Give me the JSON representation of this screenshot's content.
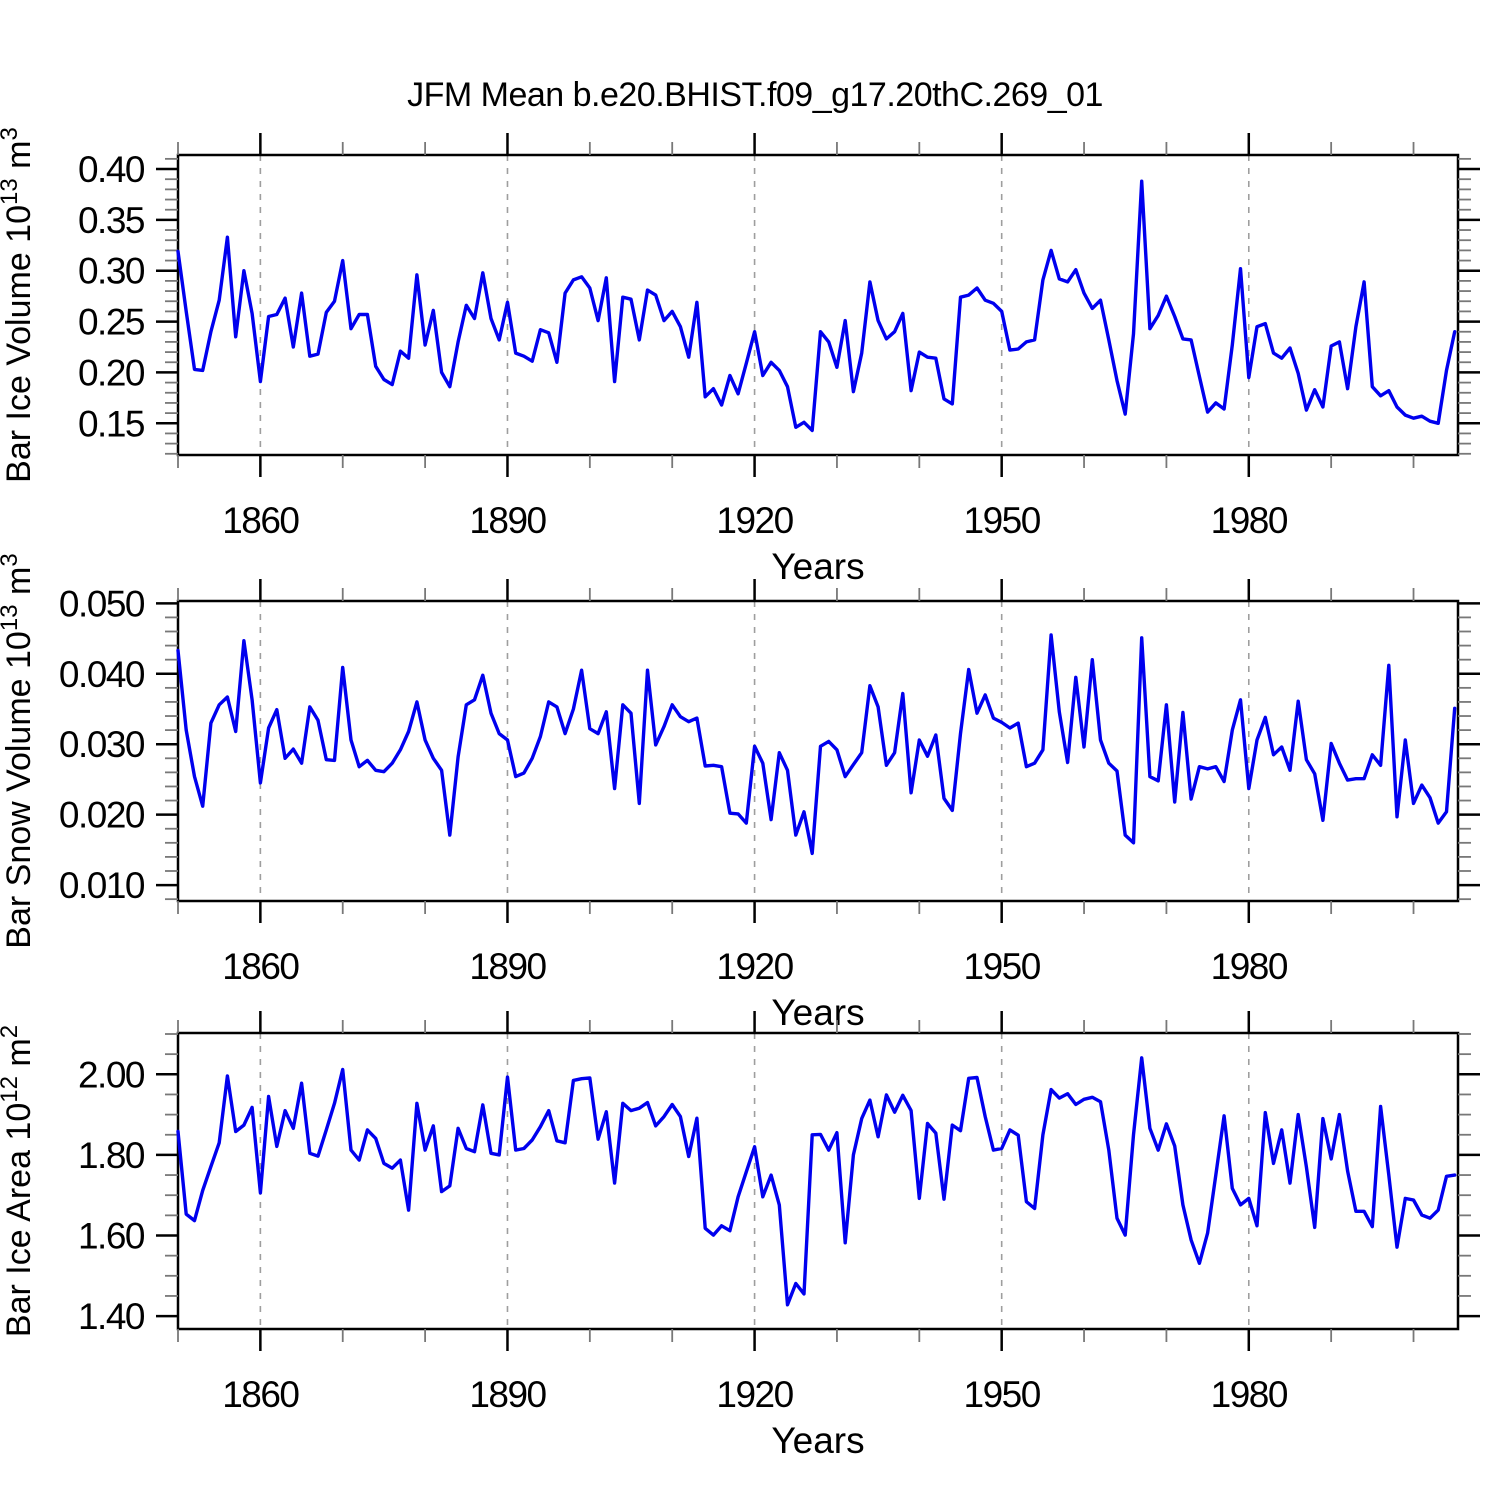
{
  "page": {
    "background": "#ffffff"
  },
  "figure_title": "JFM Mean b.e20.BHIST.f09_g17.20thC.269_01",
  "chart_data": [
    {
      "type": "line",
      "panel": "ice-volume",
      "ylabel_plain": "Bar Ice Volume 10^13 m^3",
      "ylabel_rich": [
        {
          "t": "Bar Ice Volume 10"
        },
        {
          "t": "13",
          "sup": true
        },
        {
          "t": " m"
        },
        {
          "t": "3",
          "sup": true
        }
      ],
      "xlabel": "Years",
      "x_range": [
        1850,
        2005
      ],
      "xlim": [
        1850,
        2005.4
      ],
      "ylim": [
        0.1188,
        0.4138
      ],
      "y_tick_values": [
        0.15,
        0.2,
        0.25,
        0.3,
        0.35,
        0.4
      ],
      "y_tick_labels": [
        "0.15",
        "0.20",
        "0.25",
        "0.30",
        "0.35",
        "0.40"
      ],
      "y_minor_step": 0.01,
      "x_major_ticks": [
        1860,
        1890,
        1920,
        1950,
        1980
      ],
      "x_tick_labels": [
        "1860",
        "1890",
        "1920",
        "1950",
        "1980"
      ],
      "x_minor_ticks": [
        1850,
        1870,
        1880,
        1900,
        1910,
        1930,
        1940,
        1960,
        1970,
        1990,
        2000
      ],
      "grid_years": [
        1860,
        1890,
        1920,
        1950,
        1980
      ],
      "grid_on": true,
      "legend": "none",
      "line_color": "#0000ee",
      "values": [
        0.319,
        0.26,
        0.203,
        0.202,
        0.24,
        0.271,
        0.333,
        0.235,
        0.3,
        0.258,
        0.191,
        0.255,
        0.257,
        0.273,
        0.225,
        0.278,
        0.216,
        0.218,
        0.259,
        0.27,
        0.31,
        0.243,
        0.257,
        0.257,
        0.206,
        0.193,
        0.188,
        0.221,
        0.214,
        0.296,
        0.227,
        0.261,
        0.2,
        0.186,
        0.23,
        0.266,
        0.253,
        0.298,
        0.253,
        0.232,
        0.269,
        0.219,
        0.216,
        0.211,
        0.242,
        0.239,
        0.21,
        0.278,
        0.291,
        0.294,
        0.283,
        0.251,
        0.293,
        0.191,
        0.274,
        0.272,
        0.232,
        0.281,
        0.276,
        0.251,
        0.26,
        0.245,
        0.215,
        0.269,
        0.176,
        0.184,
        0.168,
        0.197,
        0.179,
        0.209,
        0.24,
        0.197,
        0.21,
        0.202,
        0.186,
        0.146,
        0.151,
        0.143,
        0.24,
        0.23,
        0.205,
        0.251,
        0.181,
        0.219,
        0.289,
        0.251,
        0.233,
        0.24,
        0.258,
        0.182,
        0.22,
        0.215,
        0.214,
        0.174,
        0.169,
        0.274,
        0.276,
        0.283,
        0.271,
        0.268,
        0.26,
        0.222,
        0.223,
        0.23,
        0.232,
        0.291,
        0.32,
        0.292,
        0.289,
        0.301,
        0.278,
        0.263,
        0.271,
        0.232,
        0.192,
        0.159,
        0.238,
        0.388,
        0.243,
        0.256,
        0.275,
        0.255,
        0.233,
        0.232,
        0.196,
        0.161,
        0.17,
        0.164,
        0.227,
        0.302,
        0.195,
        0.245,
        0.248,
        0.219,
        0.214,
        0.224,
        0.199,
        0.163,
        0.183,
        0.166,
        0.226,
        0.23,
        0.184,
        0.245,
        0.289,
        0.186,
        0.177,
        0.182,
        0.166,
        0.158,
        0.155,
        0.157,
        0.152,
        0.15,
        0.202,
        0.24
      ]
    },
    {
      "type": "line",
      "panel": "snow-volume",
      "ylabel_plain": "Bar Snow Volume 10^13 m^3",
      "ylabel_rich": [
        {
          "t": "Bar Snow Volume 10"
        },
        {
          "t": "13",
          "sup": true
        },
        {
          "t": " m"
        },
        {
          "t": "3",
          "sup": true
        }
      ],
      "xlabel": "Years",
      "x_range": [
        1850,
        2005
      ],
      "xlim": [
        1850,
        2005.4
      ],
      "ylim": [
        0.00774,
        0.05033
      ],
      "y_tick_values": [
        0.01,
        0.02,
        0.03,
        0.04,
        0.05
      ],
      "y_tick_labels": [
        "0.010",
        "0.020",
        "0.030",
        "0.040",
        "0.050"
      ],
      "y_minor_step": 0.002,
      "x_major_ticks": [
        1860,
        1890,
        1920,
        1950,
        1980
      ],
      "x_tick_labels": [
        "1860",
        "1890",
        "1920",
        "1950",
        "1980"
      ],
      "x_minor_ticks": [
        1850,
        1870,
        1880,
        1900,
        1910,
        1930,
        1940,
        1960,
        1970,
        1990,
        2000
      ],
      "grid_years": [
        1860,
        1890,
        1920,
        1950,
        1980
      ],
      "grid_on": true,
      "legend": "none",
      "line_color": "#0000ee",
      "values": [
        0.0433,
        0.032,
        0.0254,
        0.0212,
        0.033,
        0.0356,
        0.0367,
        0.0318,
        0.0447,
        0.0363,
        0.0245,
        0.0323,
        0.0349,
        0.028,
        0.0293,
        0.0273,
        0.0353,
        0.0334,
        0.0278,
        0.0277,
        0.0409,
        0.0306,
        0.0268,
        0.0277,
        0.0263,
        0.0261,
        0.0273,
        0.0292,
        0.0318,
        0.036,
        0.0306,
        0.028,
        0.0263,
        0.0171,
        0.0282,
        0.0356,
        0.0363,
        0.0398,
        0.0344,
        0.0315,
        0.0306,
        0.0254,
        0.0259,
        0.028,
        0.0311,
        0.036,
        0.0353,
        0.0315,
        0.035,
        0.0405,
        0.0322,
        0.0315,
        0.0346,
        0.0237,
        0.0356,
        0.0344,
        0.0216,
        0.0405,
        0.0299,
        0.0325,
        0.0356,
        0.0339,
        0.0332,
        0.0337,
        0.0269,
        0.027,
        0.0268,
        0.0202,
        0.0201,
        0.0188,
        0.0297,
        0.0273,
        0.0193,
        0.0288,
        0.0263,
        0.0171,
        0.0204,
        0.0145,
        0.0297,
        0.0304,
        0.0292,
        0.0254,
        0.0271,
        0.0288,
        0.0383,
        0.0353,
        0.027,
        0.0288,
        0.0372,
        0.0231,
        0.0306,
        0.0283,
        0.0313,
        0.0223,
        0.0206,
        0.0315,
        0.0406,
        0.0344,
        0.037,
        0.0337,
        0.0331,
        0.0323,
        0.033,
        0.0268,
        0.0273,
        0.0292,
        0.0455,
        0.0346,
        0.0274,
        0.0395,
        0.0296,
        0.042,
        0.0306,
        0.0273,
        0.0262,
        0.0171,
        0.016,
        0.0451,
        0.0254,
        0.0248,
        0.0356,
        0.0218,
        0.0345,
        0.0222,
        0.0268,
        0.0265,
        0.0268,
        0.0247,
        0.032,
        0.0363,
        0.0237,
        0.0306,
        0.0338,
        0.0285,
        0.0296,
        0.0263,
        0.0361,
        0.0278,
        0.0258,
        0.0192,
        0.0301,
        0.0273,
        0.0249,
        0.0251,
        0.0251,
        0.0285,
        0.027,
        0.0412,
        0.0197,
        0.0306,
        0.0216,
        0.0242,
        0.0224,
        0.0188,
        0.0204,
        0.0351
      ]
    },
    {
      "type": "line",
      "panel": "ice-area",
      "ylabel_plain": "Bar Ice Area 10^12 m^2",
      "ylabel_rich": [
        {
          "t": "Bar Ice Area 10"
        },
        {
          "t": "12",
          "sup": true
        },
        {
          "t": " m"
        },
        {
          "t": "2",
          "sup": true
        }
      ],
      "xlabel": "Years",
      "x_range": [
        1850,
        2005
      ],
      "xlim": [
        1850,
        2005.4
      ],
      "ylim": [
        1.368,
        2.1025
      ],
      "y_tick_values": [
        1.4,
        1.6,
        1.8,
        2.0
      ],
      "y_tick_labels": [
        "1.40",
        "1.60",
        "1.80",
        "2.00"
      ],
      "y_minor_step": 0.05,
      "x_major_ticks": [
        1860,
        1890,
        1920,
        1950,
        1980
      ],
      "x_tick_labels": [
        "1860",
        "1890",
        "1920",
        "1950",
        "1980"
      ],
      "x_minor_ticks": [
        1850,
        1870,
        1880,
        1900,
        1910,
        1930,
        1940,
        1960,
        1970,
        1990,
        2000
      ],
      "grid_years": [
        1860,
        1890,
        1920,
        1950,
        1980
      ],
      "grid_on": true,
      "legend": "none",
      "line_color": "#0000ee",
      "values": [
        1.858,
        1.653,
        1.637,
        1.712,
        1.771,
        1.83,
        1.996,
        1.858,
        1.874,
        1.918,
        1.706,
        1.945,
        1.821,
        1.91,
        1.866,
        1.978,
        1.804,
        1.797,
        1.862,
        1.928,
        2.012,
        1.812,
        1.787,
        1.862,
        1.841,
        1.779,
        1.767,
        1.787,
        1.663,
        1.928,
        1.812,
        1.872,
        1.709,
        1.723,
        1.866,
        1.816,
        1.808,
        1.924,
        1.804,
        1.8,
        1.993,
        1.812,
        1.816,
        1.837,
        1.87,
        1.91,
        1.835,
        1.83,
        1.985,
        1.989,
        1.991,
        1.839,
        1.907,
        1.73,
        1.928,
        1.91,
        1.916,
        1.93,
        1.872,
        1.895,
        1.925,
        1.895,
        1.796,
        1.891,
        1.618,
        1.601,
        1.624,
        1.612,
        1.696,
        1.758,
        1.82,
        1.696,
        1.75,
        1.676,
        1.428,
        1.481,
        1.455,
        1.85,
        1.851,
        1.812,
        1.855,
        1.582,
        1.8,
        1.89,
        1.936,
        1.845,
        1.949,
        1.906,
        1.948,
        1.91,
        1.692,
        1.878,
        1.854,
        1.69,
        1.874,
        1.86,
        1.99,
        1.992,
        1.895,
        1.812,
        1.816,
        1.862,
        1.849,
        1.684,
        1.667,
        1.85,
        1.962,
        1.941,
        1.952,
        1.925,
        1.938,
        1.943,
        1.932,
        1.812,
        1.643,
        1.601,
        1.85,
        2.041,
        1.866,
        1.812,
        1.877,
        1.822,
        1.676,
        1.589,
        1.531,
        1.606,
        1.75,
        1.897,
        1.717,
        1.676,
        1.692,
        1.624,
        1.905,
        1.779,
        1.862,
        1.73,
        1.9,
        1.77,
        1.62,
        1.89,
        1.79,
        1.9,
        1.76,
        1.66,
        1.66,
        1.622,
        1.92,
        1.75,
        1.571,
        1.692,
        1.688,
        1.651,
        1.643,
        1.663,
        1.747,
        1.75
      ]
    }
  ],
  "style": {
    "frame_color": "#000000",
    "grid_color": "#9e9e9e",
    "minor_tick_color": "#787878",
    "major_tick_color": "#000000"
  }
}
